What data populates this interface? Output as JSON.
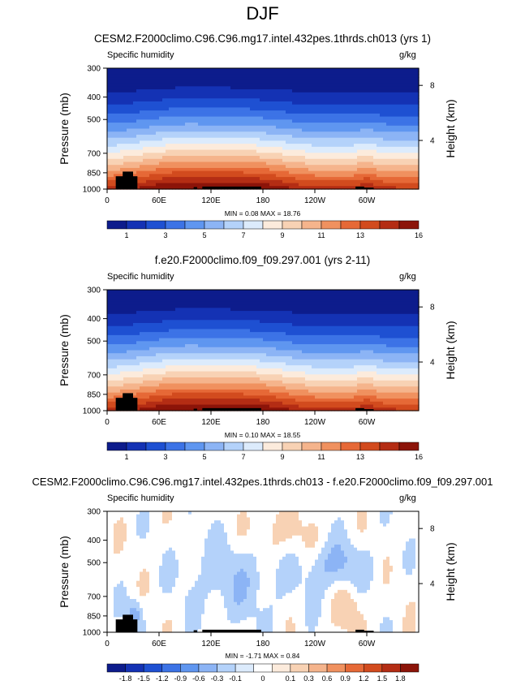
{
  "page_title": "DJF",
  "colors": {
    "seq": [
      "#0d1c8c",
      "#1432b4",
      "#1e50d2",
      "#3c73e6",
      "#5f96f0",
      "#8cb4f5",
      "#b4d2fa",
      "#dcebfc",
      "#fcebdc",
      "#f8d2b4",
      "#f5b48c",
      "#f0915f",
      "#e66937",
      "#d24b1e",
      "#b42d14",
      "#8c1409"
    ],
    "div": [
      "#0d1c8c",
      "#1432b4",
      "#1e50d2",
      "#3c73e6",
      "#5f96f0",
      "#8cb4f5",
      "#b4d2fa",
      "#dcebfc",
      "#ffffff",
      "#fcebdc",
      "#f8d2b4",
      "#f5b48c",
      "#f0915f",
      "#e66937",
      "#d24b1e",
      "#b42d14",
      "#8c1409"
    ],
    "land": "#000000"
  },
  "chart_data": [
    {
      "type": "heatmap",
      "title": "CESM2.F2000climo.C96.C96.mg17.intel.432pes.1thrds.ch013 (yrs 1)",
      "left_label": "Specific humidity",
      "right_label": "g/kg",
      "ylabel": "Pressure (mb)",
      "ylabel_right": "Height (km)",
      "x_ticks": [
        "0",
        "60E",
        "120E",
        "180",
        "120W",
        "60W"
      ],
      "y_ticks": [
        "300",
        "400",
        "500",
        "700",
        "850",
        "1000"
      ],
      "y_right_ticks": [
        "8",
        "4"
      ],
      "min_text": "MIN =  0.08  MAX =  18.76",
      "colorbar_labels": [
        "1",
        "3",
        "5",
        "7",
        "9",
        "11",
        "13",
        "16"
      ]
    },
    {
      "type": "heatmap",
      "title": "f.e20.F2000climo.f09_f09.297.001 (yrs 2-11)",
      "left_label": "Specific humidity",
      "right_label": "g/kg",
      "ylabel": "Pressure (mb)",
      "ylabel_right": "Height (km)",
      "x_ticks": [
        "0",
        "60E",
        "120E",
        "180",
        "120W",
        "60W"
      ],
      "y_ticks": [
        "300",
        "400",
        "500",
        "700",
        "850",
        "1000"
      ],
      "y_right_ticks": [
        "8",
        "4"
      ],
      "min_text": "MIN =  0.10  MAX =  18.55",
      "colorbar_labels": [
        "1",
        "3",
        "5",
        "7",
        "9",
        "11",
        "13",
        "16"
      ]
    },
    {
      "type": "heatmap",
      "title": "CESM2.F2000climo.C96.C96.mg17.intel.432pes.1thrds.ch013 - f.e20.F2000climo.f09_f09.297.001",
      "left_label": "Specific humidity",
      "right_label": "g/kg",
      "ylabel": "Pressure (mb)",
      "ylabel_right": "Height (km)",
      "x_ticks": [
        "0",
        "60E",
        "120E",
        "180",
        "120W",
        "60W"
      ],
      "y_ticks": [
        "300",
        "400",
        "500",
        "700",
        "850",
        "1000"
      ],
      "y_right_ticks": [
        "8",
        "4"
      ],
      "min_text": "MIN = -1.71  MAX =  0.84",
      "colorbar_labels": [
        "-1.8",
        "-1.5",
        "-1.2",
        "-0.9",
        "-0.6",
        "-0.3",
        "-0.1",
        "0",
        "0.1",
        "0.3",
        "0.6",
        "0.9",
        "1.2",
        "1.5",
        "1.8"
      ]
    }
  ]
}
